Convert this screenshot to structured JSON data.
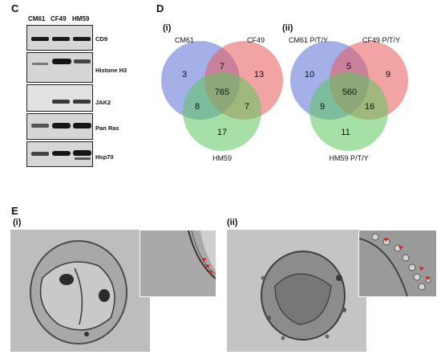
{
  "panels": {
    "c": {
      "letter": "C",
      "lanes": [
        "CM61",
        "CF49",
        "HM59"
      ],
      "blots": [
        {
          "label": "CD9"
        },
        {
          "label": "Histone H3"
        },
        {
          "label": "JAK2"
        },
        {
          "label": "Pan Ras"
        },
        {
          "label": "Hsp70"
        }
      ]
    },
    "d": {
      "letter": "D",
      "venns": [
        {
          "tag": "(i)",
          "set_labels": [
            "CM61",
            "CF49",
            "HM59"
          ],
          "values": {
            "a_only": "3",
            "b_only": "13",
            "c_only": "17",
            "ab": "7",
            "ac": "8",
            "bc": "7",
            "abc": "765"
          }
        },
        {
          "tag": "(ii)",
          "set_labels": [
            "CM61 P/T/Y",
            "CF49 P/T/Y",
            "HM59 P/T/Y"
          ],
          "values": {
            "a_only": "10",
            "b_only": "9",
            "c_only": "11",
            "ab": "5",
            "ac": "9",
            "bc": "16",
            "abc": "560"
          }
        }
      ],
      "colors": {
        "set_a": "#5b6fd6",
        "set_b": "#e85a5a",
        "set_c": "#5cc65c"
      }
    },
    "e": {
      "letter": "E",
      "images": [
        {
          "tag": "(i)"
        },
        {
          "tag": "(ii)"
        }
      ],
      "arrow_color": "#e31c1c"
    }
  }
}
